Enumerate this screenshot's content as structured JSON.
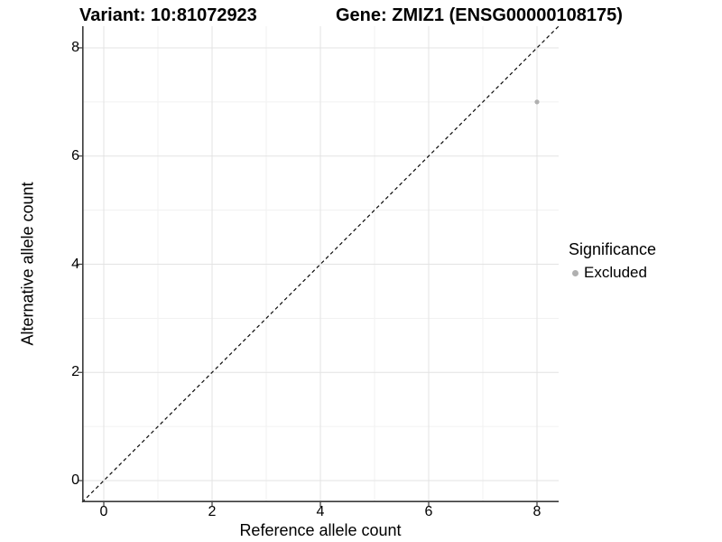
{
  "header": {
    "variant_title": "Variant: 10:81072923",
    "gene_title": "Gene: ZMIZ1 (ENSG00000108175)"
  },
  "legend": {
    "title": "Significance",
    "items": [
      {
        "label": "Excluded",
        "marker": "dot",
        "color": "#b0b0b0"
      }
    ]
  },
  "chart_data": {
    "type": "scatter",
    "title": "Variant: 10:81072923",
    "subtitle": "Gene: ZMIZ1 (ENSG00000108175)",
    "xlabel": "Reference allele count",
    "ylabel": "Alternative allele count",
    "xlim": [
      -0.4,
      8.4
    ],
    "ylim": [
      -0.4,
      8.4
    ],
    "x_ticks": [
      0,
      2,
      4,
      6,
      8
    ],
    "y_ticks": [
      0,
      2,
      4,
      6,
      8
    ],
    "x_minor_grid": [
      1,
      3,
      5,
      7
    ],
    "y_minor_grid": [
      1,
      3,
      5,
      7
    ],
    "grid": "on",
    "legend_position": "right",
    "series": [
      {
        "name": "Excluded",
        "color": "#b0b0b0",
        "points": [
          {
            "x": 8,
            "y": 7
          }
        ]
      }
    ],
    "reference_line": {
      "kind": "identity",
      "x1": -0.4,
      "y1": -0.4,
      "x2": 8.4,
      "y2": 8.4,
      "style": "dashed",
      "color": "#0a0a0a"
    }
  },
  "colors": {
    "background": "#ffffff",
    "grid_major": "#e3e3e3",
    "grid_minor": "#f1f1f1",
    "axis": "#3a3a3a",
    "text": "#000000"
  }
}
